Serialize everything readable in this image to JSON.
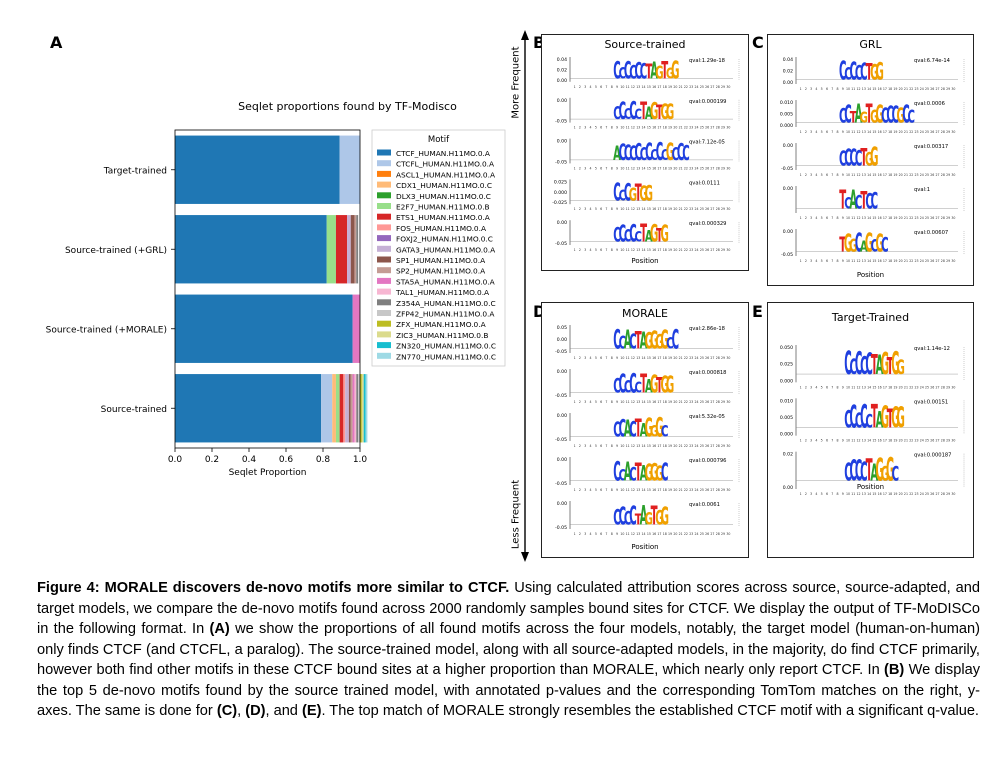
{
  "panel_a": {
    "letter": "A",
    "chart_data": {
      "type": "bar",
      "orientation": "horizontal",
      "stacked": true,
      "title": "Seqlet proportions found by TF-Modisco",
      "xlabel": "Seqlet Proportion",
      "ylabel": "",
      "xlim": [
        0,
        1.0
      ],
      "x_ticks": [
        "0.0",
        "0.2",
        "0.4",
        "0.6",
        "0.8",
        "1.0"
      ],
      "categories": [
        "Target-trained",
        "Source-trained (+GRL)",
        "Source-trained (+MORALE)",
        "Source-trained"
      ],
      "legend_title": "Motif",
      "legend_position": "right",
      "series": [
        {
          "name": "CTCF_HUMAN.H11MO.0.A",
          "color": "#1f77b4",
          "values": [
            0.89,
            0.82,
            0.96,
            0.79
          ]
        },
        {
          "name": "CTCFL_HUMAN.H11MO.0.A",
          "color": "#aec7e8",
          "values": [
            0.11,
            0.0,
            0.0,
            0.06
          ]
        },
        {
          "name": "ASCL1_HUMAN.H11MO.0.A",
          "color": "#ff7f0e",
          "values": [
            0,
            0,
            0,
            0.0
          ]
        },
        {
          "name": "CDX1_HUMAN.H11MO.0.C",
          "color": "#ffbb78",
          "values": [
            0,
            0.0,
            0,
            0.02
          ]
        },
        {
          "name": "DLX3_HUMAN.H11MO.0.C",
          "color": "#2ca02c",
          "values": [
            0,
            0.0,
            0,
            0.0
          ]
        },
        {
          "name": "E2F7_HUMAN.H11MO.0.B",
          "color": "#98df8a",
          "values": [
            0,
            0.05,
            0,
            0.02
          ]
        },
        {
          "name": "ETS1_HUMAN.H11MO.0.A",
          "color": "#d62728",
          "values": [
            0,
            0.06,
            0,
            0.02
          ]
        },
        {
          "name": "FOS_HUMAN.H11MO.0.A",
          "color": "#ff9896",
          "values": [
            0,
            0.0,
            0,
            0.01
          ]
        },
        {
          "name": "FOXJ2_HUMAN.H11MO.0.C",
          "color": "#9467bd",
          "values": [
            0,
            0.0,
            0,
            0.0
          ]
        },
        {
          "name": "GATA3_HUMAN.H11MO.0.A",
          "color": "#c5b0d5",
          "values": [
            0,
            0.02,
            0,
            0.02
          ]
        },
        {
          "name": "SP1_HUMAN.H11MO.0.A",
          "color": "#8c564b",
          "values": [
            0,
            0.02,
            0,
            0.01
          ]
        },
        {
          "name": "SP2_HUMAN.H11MO.0.A",
          "color": "#c49c94",
          "values": [
            0,
            0.01,
            0,
            0.01
          ]
        },
        {
          "name": "STA5A_HUMAN.H11MO.0.A",
          "color": "#e377c2",
          "values": [
            0,
            0.0,
            0.04,
            0.01
          ]
        },
        {
          "name": "TAL1_HUMAN.H11MO.0.A",
          "color": "#f7b6d2",
          "values": [
            0,
            0.0,
            0,
            0.01
          ]
        },
        {
          "name": "Z354A_HUMAN.H11MO.0.C",
          "color": "#7f7f7f",
          "values": [
            0,
            0.01,
            0,
            0.01
          ]
        },
        {
          "name": "ZFP42_HUMAN.H11MO.0.A",
          "color": "#c7c7c7",
          "values": [
            0,
            0.0,
            0,
            0.01
          ]
        },
        {
          "name": "ZFX_HUMAN.H11MO.0.A",
          "color": "#bcbd22",
          "values": [
            0,
            0.0,
            0,
            0.01
          ]
        },
        {
          "name": "ZIC3_HUMAN.H11MO.0.B",
          "color": "#dbdb8d",
          "values": [
            0,
            0.0,
            0,
            0.01
          ]
        },
        {
          "name": "ZN320_HUMAN.H11MO.0.C",
          "color": "#17becf",
          "values": [
            0,
            0.0,
            0,
            0.01
          ]
        },
        {
          "name": "ZN770_HUMAN.H11MO.0.C",
          "color": "#9edae5",
          "values": [
            0,
            0.0,
            0,
            0.01
          ]
        }
      ]
    }
  },
  "axis_side": {
    "top": "More Frequent",
    "bottom": "Less Frequent"
  },
  "motif_panels": [
    {
      "letter": "B",
      "title": "Source-trained",
      "xlabel": "Position",
      "logos": [
        {
          "qval": "qval:1.29e-18",
          "yticks": [
            "0.04",
            "0.02",
            "0.00"
          ],
          "motif": "CCCCCCTAGTGG"
        },
        {
          "qval": "qval:0.000199",
          "yticks": [
            "0.00",
            "-0.05"
          ],
          "motif": "CCCCCTAGTGG"
        },
        {
          "qval": "qval:7.12e-05",
          "yticks": [
            "0.00",
            "-0.05"
          ],
          "motif": "ACCCCCCCCCGCCC"
        },
        {
          "qval": "qval:0.0111",
          "yticks": [
            "0.025",
            "0.000",
            "-0.025"
          ],
          "motif": "CCCGTGG"
        },
        {
          "qval": "qval:0.000329",
          "yticks": [
            "0.00",
            "-0.05"
          ],
          "motif": "CCCCCTAGTG"
        }
      ]
    },
    {
      "letter": "C",
      "title": "GRL",
      "xlabel": "Position",
      "logos": [
        {
          "qval": "qval:6.74e-14",
          "yticks": [
            "0.04",
            "0.02",
            "0.00"
          ],
          "motif": "CCCCCTGG"
        },
        {
          "qval": "qval:0.0006",
          "yticks": [
            "0.010",
            "0.005",
            "0.000"
          ],
          "motif": "CCTAGTGGCCCGCC"
        },
        {
          "qval": "qval:0.00317",
          "yticks": [
            "0.00",
            "-0.05"
          ],
          "motif": "CCCCTGG"
        },
        {
          "qval": "qval:1",
          "yticks": [
            "0.00"
          ],
          "motif": "TCACTCC"
        },
        {
          "qval": "qval:0.00607",
          "yticks": [
            "0.00",
            "-0.05"
          ],
          "motif": "TGGCAGCGC"
        }
      ]
    },
    {
      "letter": "D",
      "title": "MORALE",
      "xlabel": "Position",
      "logos": [
        {
          "qval": "qval:2.86e-18",
          "yticks": [
            "0.05",
            "0.00",
            "-0.05"
          ],
          "motif": "CCACTAGGGGCC"
        },
        {
          "qval": "qval:0.000818",
          "yticks": [
            "0.00",
            "-0.05"
          ],
          "motif": "CCCCCTAGTGG"
        },
        {
          "qval": "qval:5.32e-05",
          "yticks": [
            "0.00",
            "-0.05"
          ],
          "motif": "CCACTAGGGC"
        },
        {
          "qval": "qval:0.000796",
          "yticks": [
            "0.00",
            "-0.05"
          ],
          "motif": "CCACTAGGGC"
        },
        {
          "qval": "qval:0.0061",
          "yticks": [
            "0.00",
            "-0.05"
          ],
          "motif": "CCCCTAGTGG"
        }
      ]
    },
    {
      "letter": "E",
      "title": "Target-Trained",
      "xlabel": "Position",
      "logos": [
        {
          "qval": "qval:1.14e-12",
          "yticks": [
            "0.050",
            "0.025",
            "0.000"
          ],
          "motif": "CCCCCTAGTGG"
        },
        {
          "qval": "qval:0.00151",
          "yticks": [
            "0.010",
            "0.005",
            "0.000"
          ],
          "motif": "CCCCCTAGTGG"
        },
        {
          "qval": "qval:0.000187",
          "yticks": [
            "0.02",
            "0.00"
          ],
          "motif": "CCCCTAGGGC"
        }
      ]
    }
  ],
  "caption": {
    "label": "Figure 4:",
    "headline": "MORALE discovers de-novo motifs more similar to CTCF.",
    "segments": [
      {
        "t": " Using calculated attribution scores across source, source-adapted, and target models, we compare the de-novo motifs found across 2000 randomly samples bound sites for CTCF. We display the output of TF-MoDISCo in the following format. In ",
        "b": false
      },
      {
        "t": "(A)",
        "b": true
      },
      {
        "t": " we show the proportions of all found motifs across the four models, notably, the target model (human-on-human) only finds CTCF (and CTCFL, a paralog). The source-trained model, along with all source-adapted models, in the majority, do find CTCF primarily, however both find other motifs in these CTCF bound sites at a higher proportion than MORALE, which nearly only report CTCF. In ",
        "b": false
      },
      {
        "t": "(B)",
        "b": true
      },
      {
        "t": " We display the top 5 de-novo motifs found by the source trained model, with annotated p-values and the corresponding TomTom matches on the right, y-axes. The same is done for ",
        "b": false
      },
      {
        "t": "(C)",
        "b": true
      },
      {
        "t": ", ",
        "b": false
      },
      {
        "t": "(D)",
        "b": true
      },
      {
        "t": ", and ",
        "b": false
      },
      {
        "t": "(E)",
        "b": true
      },
      {
        "t": ". The top match of MORALE strongly resembles the established CTCF motif with a significant q-value.",
        "b": false
      }
    ]
  },
  "base_colors": {
    "A": "#2ca02c",
    "C": "#1f3fdf",
    "G": "#f0a000",
    "T": "#e02020"
  }
}
